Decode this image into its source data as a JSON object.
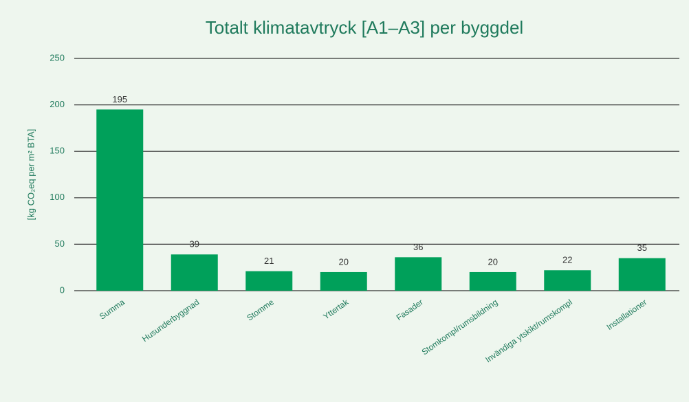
{
  "chart_data": {
    "type": "bar",
    "title": "Totalt klimatavtryck [A1–A3] per byggdel",
    "y_label": "[kg CO₂eq per m² BTA]",
    "categories": [
      "Summa",
      "Husunderbyggnad",
      "Stomme",
      "Yttertak",
      "Fasader",
      "Stomkompl/rumsbildning",
      "Invändiga ytskikt/rumskompl",
      "Installationer"
    ],
    "values": [
      195,
      39,
      21,
      20,
      36,
      20,
      22,
      35
    ],
    "color": "#00a05a",
    "ylim": [
      0,
      250
    ],
    "yticks": [
      0,
      50,
      100,
      150,
      200,
      250
    ],
    "grid": true
  }
}
